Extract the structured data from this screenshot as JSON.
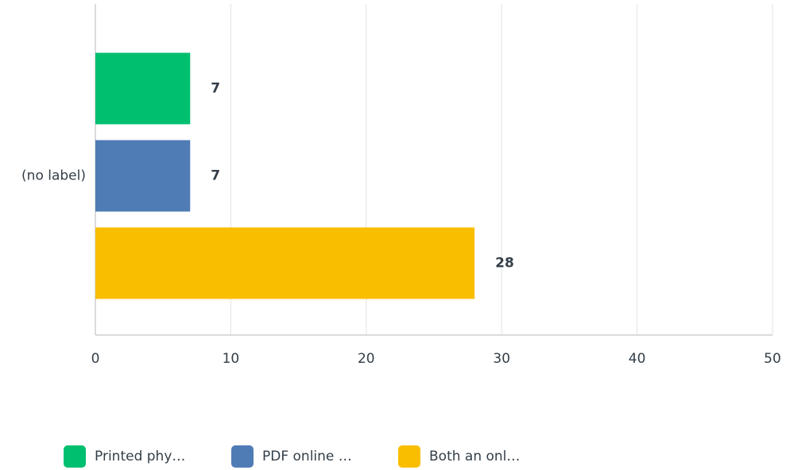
{
  "chart_data": {
    "type": "bar",
    "orientation": "horizontal",
    "categories": [
      "(no label)"
    ],
    "series": [
      {
        "name": "Printed phy…",
        "color": "#00bf6f",
        "values": [
          7
        ]
      },
      {
        "name": "PDF online …",
        "color": "#507cb6",
        "values": [
          7
        ]
      },
      {
        "name": "Both an onl…",
        "color": "#f9be00",
        "values": [
          28
        ]
      }
    ],
    "xlim": [
      0,
      50
    ],
    "xticks": [
      0,
      10,
      20,
      30,
      40,
      50
    ],
    "grid": true,
    "legend": "bottom"
  }
}
